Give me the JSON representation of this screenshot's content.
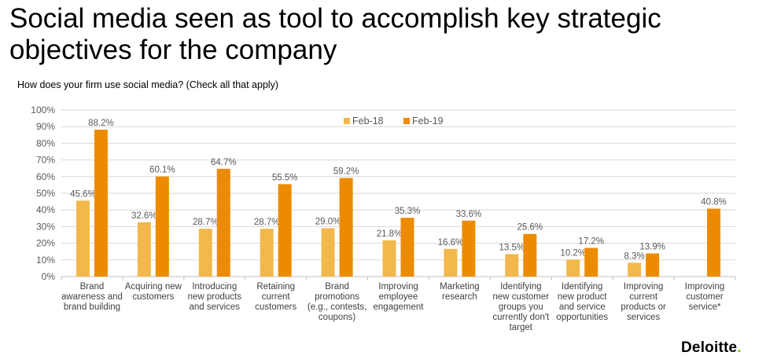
{
  "title": "Social media seen as tool to accomplish key strategic objectives for the company",
  "subtitle": "How does your firm use social media? (Check all that apply)",
  "brand": "Deloitte",
  "brand_dot": ".",
  "colors": {
    "feb18": "#f2b84b",
    "feb19": "#ed8b00",
    "grid": "#d9d9d9",
    "axis": "#bfbfbf"
  },
  "chart_data": {
    "type": "bar",
    "title": "",
    "xlabel": "",
    "ylabel": "",
    "ylim": [
      0,
      100
    ],
    "y_ticks": [
      "0%",
      "10%",
      "20%",
      "30%",
      "40%",
      "50%",
      "60%",
      "70%",
      "80%",
      "90%",
      "100%"
    ],
    "grid": true,
    "legend_position": "top-center",
    "categories": [
      [
        "Brand",
        "awareness and",
        "brand building"
      ],
      [
        "Acquiring new",
        "customers"
      ],
      [
        "Introducing",
        "new products",
        "and services"
      ],
      [
        "Retaining",
        "current",
        "customers"
      ],
      [
        "Brand",
        "promotions",
        "(e.g., contests,",
        "coupons)"
      ],
      [
        "Improving",
        "employee",
        "engagement"
      ],
      [
        "Marketing",
        "research"
      ],
      [
        "Identifying",
        "new customer",
        "groups you",
        "currently don't",
        "target"
      ],
      [
        "Identifying",
        "new product",
        "and service",
        "opportunities"
      ],
      [
        "Improving",
        "current",
        "products or",
        "services"
      ],
      [
        "Improving",
        "customer",
        "service*"
      ]
    ],
    "series": [
      {
        "name": "Feb-18",
        "values": [
          45.6,
          32.6,
          28.7,
          28.7,
          29.0,
          21.8,
          16.6,
          13.5,
          10.2,
          8.3,
          null
        ],
        "labels": [
          "45.6%",
          "32.6%",
          "28.7%",
          "28.7%",
          "29.0%",
          "21.8%",
          "16.6%",
          "13.5%",
          "10.2%",
          "8.3%",
          ""
        ]
      },
      {
        "name": "Feb-19",
        "values": [
          88.2,
          60.1,
          64.7,
          55.5,
          59.2,
          35.3,
          33.6,
          25.6,
          17.2,
          13.9,
          40.8
        ],
        "labels": [
          "88.2%",
          "60.1%",
          "64.7%",
          "55.5%",
          "59.2%",
          "35.3%",
          "33.6%",
          "25.6%",
          "17.2%",
          "13.9%",
          "40.8%"
        ]
      }
    ]
  }
}
